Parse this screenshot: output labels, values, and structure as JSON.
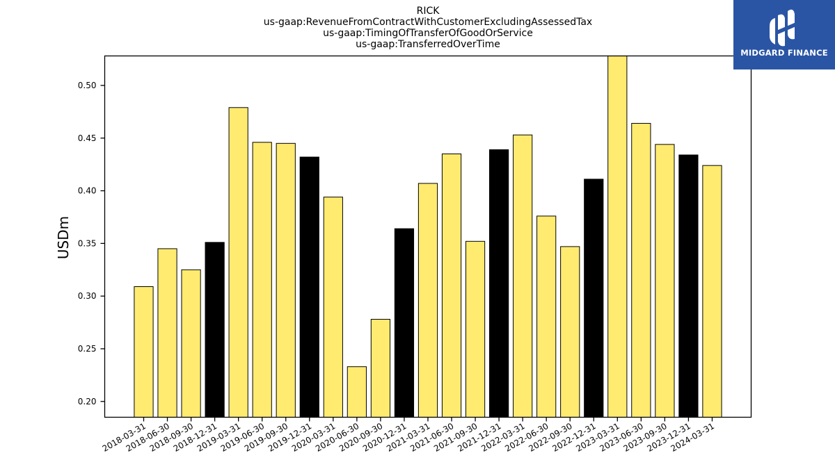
{
  "chart_data": {
    "type": "bar",
    "title_lines": [
      "RICK",
      "us-gaap:RevenueFromContractWithCustomerExcludingAssessedTax",
      "us-gaap:TimingOfTransferOfGoodOrService",
      "us-gaap:TransferredOverTime"
    ],
    "xlabel": "",
    "ylabel": "USDm",
    "ylim": [
      0.185,
      0.528
    ],
    "yticks": [
      0.2,
      0.25,
      0.3,
      0.35,
      0.4,
      0.45,
      0.5
    ],
    "ytick_labels": [
      "0.20",
      "0.25",
      "0.30",
      "0.35",
      "0.40",
      "0.45",
      "0.50"
    ],
    "grid": false,
    "categories": [
      "2018-03-31",
      "2018-06-30",
      "2018-09-30",
      "2018-12-31",
      "2019-03-31",
      "2019-06-30",
      "2019-09-30",
      "2019-12-31",
      "2020-03-31",
      "2020-06-30",
      "2020-09-30",
      "2020-12-31",
      "2021-03-31",
      "2021-06-30",
      "2021-09-30",
      "2021-12-31",
      "2022-03-31",
      "2022-06-30",
      "2022-09-30",
      "2022-12-31",
      "2023-03-31",
      "2023-06-30",
      "2023-09-30",
      "2023-12-31",
      "2024-03-31"
    ],
    "values": [
      0.309,
      0.345,
      0.325,
      0.351,
      0.479,
      0.446,
      0.445,
      0.432,
      0.394,
      0.233,
      0.278,
      0.364,
      0.407,
      0.435,
      0.352,
      0.439,
      0.453,
      0.376,
      0.347,
      0.411,
      0.53,
      0.464,
      0.444,
      0.434,
      0.424
    ],
    "bar_colors": [
      "#ffeb70",
      "#ffeb70",
      "#ffeb70",
      "#000000",
      "#ffeb70",
      "#ffeb70",
      "#ffeb70",
      "#000000",
      "#ffeb70",
      "#ffeb70",
      "#ffeb70",
      "#000000",
      "#ffeb70",
      "#ffeb70",
      "#ffeb70",
      "#000000",
      "#ffeb70",
      "#ffeb70",
      "#ffeb70",
      "#000000",
      "#ffeb70",
      "#ffeb70",
      "#ffeb70",
      "#000000",
      "#ffeb70"
    ]
  },
  "logo": {
    "text": "MIDGARD FINANCE",
    "icon": "midgard-finance-logo-icon",
    "background": "#2a55a5",
    "foreground": "#ffffff"
  }
}
